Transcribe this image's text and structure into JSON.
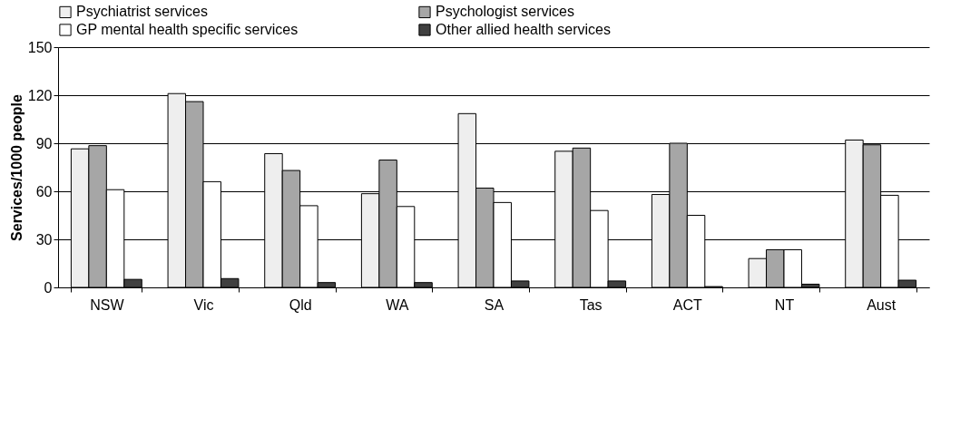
{
  "chart_data": {
    "type": "bar",
    "ylabel": "Services/1000 people",
    "categories": [
      "NSW",
      "Vic",
      "Qld",
      "WA",
      "SA",
      "Tas",
      "ACT",
      "NT",
      "Aust"
    ],
    "series": [
      {
        "name": "Psychiatrist services",
        "color": "#eeeeee",
        "values": [
          86.5,
          121,
          83.5,
          58.5,
          108.5,
          85,
          58,
          18,
          92
        ]
      },
      {
        "name": "Psychologist services",
        "color": "#a6a6a6",
        "values": [
          88.5,
          116,
          73,
          79.5,
          62,
          87,
          90,
          23.5,
          89
        ]
      },
      {
        "name": "GP mental health specific services",
        "color": "#ffffff",
        "values": [
          61,
          66,
          51,
          50.5,
          53,
          48,
          45,
          23.5,
          57.5
        ]
      },
      {
        "name": "Other allied health services",
        "color": "#404040",
        "values": [
          5,
          5.5,
          3,
          3,
          4,
          4,
          0.5,
          2,
          4.5
        ]
      }
    ],
    "ylim": [
      0,
      150
    ],
    "yticks": [
      0,
      30,
      60,
      90,
      120,
      150
    ],
    "grid": "y",
    "legend": "top"
  }
}
